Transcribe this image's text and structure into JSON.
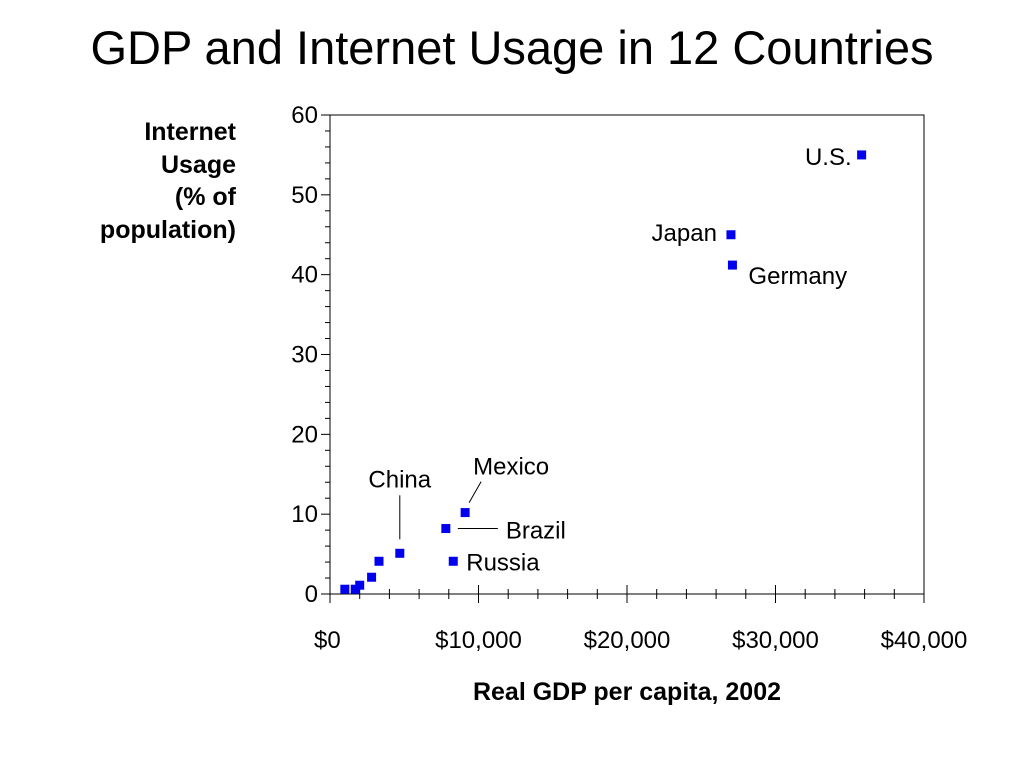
{
  "chart_data": {
    "type": "scatter",
    "title": "GDP and Internet Usage in 12 Countries",
    "xlabel": "Real GDP per capita, 2002",
    "ylabel_lines": [
      "Internet",
      "Usage",
      "(% of",
      "population)"
    ],
    "xlim": [
      0,
      40000
    ],
    "ylim": [
      0,
      60
    ],
    "x_ticks": [
      0,
      10000,
      20000,
      30000,
      40000
    ],
    "x_tick_labels": [
      "$0",
      "$10,000",
      "$20,000",
      "$30,000",
      "$40,000"
    ],
    "y_ticks": [
      0,
      10,
      20,
      30,
      40,
      50,
      60
    ],
    "y_tick_labels": [
      "0",
      "10",
      "20",
      "30",
      "40",
      "50",
      "60"
    ],
    "marker_color": "#0000ee",
    "points": [
      {
        "x": 35800,
        "y": 55,
        "label": "U.S."
      },
      {
        "x": 27000,
        "y": 45,
        "label": "Japan"
      },
      {
        "x": 27100,
        "y": 41.2,
        "label": "Germany"
      },
      {
        "x": 9100,
        "y": 10.2,
        "label": "Mexico"
      },
      {
        "x": 7800,
        "y": 8.2,
        "label": "Brazil"
      },
      {
        "x": 8300,
        "y": 4.1,
        "label": "Russia"
      },
      {
        "x": 4700,
        "y": 5.1,
        "label": "China"
      },
      {
        "x": 3300,
        "y": 4.1,
        "label": ""
      },
      {
        "x": 2800,
        "y": 2.1,
        "label": ""
      },
      {
        "x": 2000,
        "y": 1.1,
        "label": ""
      },
      {
        "x": 1700,
        "y": 0.6,
        "label": ""
      },
      {
        "x": 1000,
        "y": 0.6,
        "label": ""
      }
    ]
  }
}
